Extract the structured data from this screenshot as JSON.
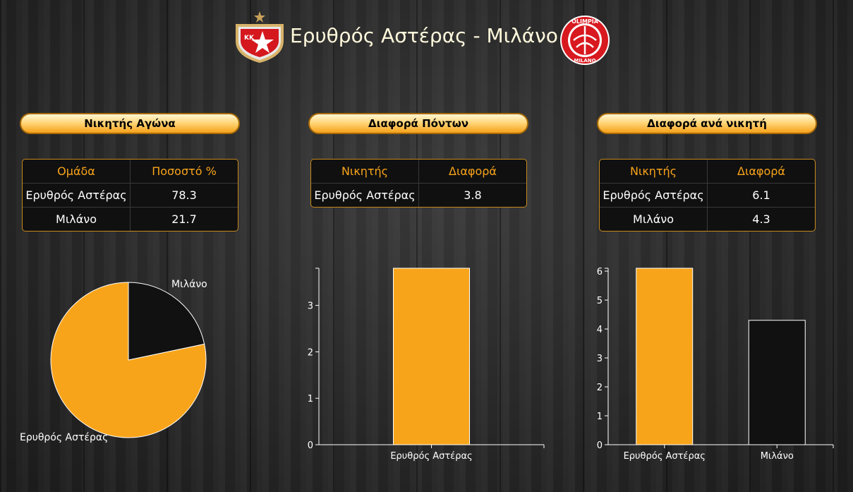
{
  "header": {
    "title": "Ερυθρός Αστέρας - Μιλάνο",
    "logo_left": {
      "name": "crvena-zvezda-logo",
      "text": "KK"
    },
    "logo_right": {
      "name": "olimpia-milano-logo",
      "text_top": "OLIMPIA",
      "text_bottom": "MILANO"
    }
  },
  "colors": {
    "accent": "#f8a41a",
    "bar_dark": "#111111",
    "axis": "#ffffff",
    "table_border": "#c68a1e"
  },
  "panels": [
    {
      "heading": "Νικητής Αγώνα",
      "table": {
        "headers": [
          "Ομάδα",
          "Ποσοστό %"
        ],
        "rows": [
          [
            "Ερυθρός Αστέρας",
            "78.3"
          ],
          [
            "Μιλάνο",
            "21.7"
          ]
        ]
      }
    },
    {
      "heading": "Διαφορά Πόντων",
      "table": {
        "headers": [
          "Νικητής",
          "Διαφορά"
        ],
        "rows": [
          [
            "Ερυθρός Αστέρας",
            "3.8"
          ]
        ]
      }
    },
    {
      "heading": "Διαφορά ανά νικητή",
      "table": {
        "headers": [
          "Νικητής",
          "Διαφορά"
        ],
        "rows": [
          [
            "Ερυθρός Αστέρας",
            "6.1"
          ],
          [
            "Μιλάνο",
            "4.3"
          ]
        ]
      }
    }
  ],
  "chart_data": [
    {
      "type": "pie",
      "categories": [
        "Ερυθρός Αστέρας",
        "Μιλάνο"
      ],
      "values": [
        78.3,
        21.7
      ],
      "colors": [
        "#f8a41a",
        "#111111"
      ]
    },
    {
      "type": "bar",
      "categories": [
        "Ερυθρός Αστέρας"
      ],
      "values": [
        3.8
      ],
      "ylim": [
        0,
        3.8
      ],
      "yticks": [
        0,
        1,
        2,
        3
      ],
      "colors": [
        "#f8a41a"
      ]
    },
    {
      "type": "bar",
      "categories": [
        "Ερυθρός Αστέρας",
        "Μιλάνο"
      ],
      "values": [
        6.1,
        4.3
      ],
      "ylim": [
        0,
        6.1
      ],
      "yticks": [
        0,
        1,
        2,
        3,
        4,
        5,
        6
      ],
      "colors": [
        "#f8a41a",
        "#111111"
      ]
    }
  ]
}
